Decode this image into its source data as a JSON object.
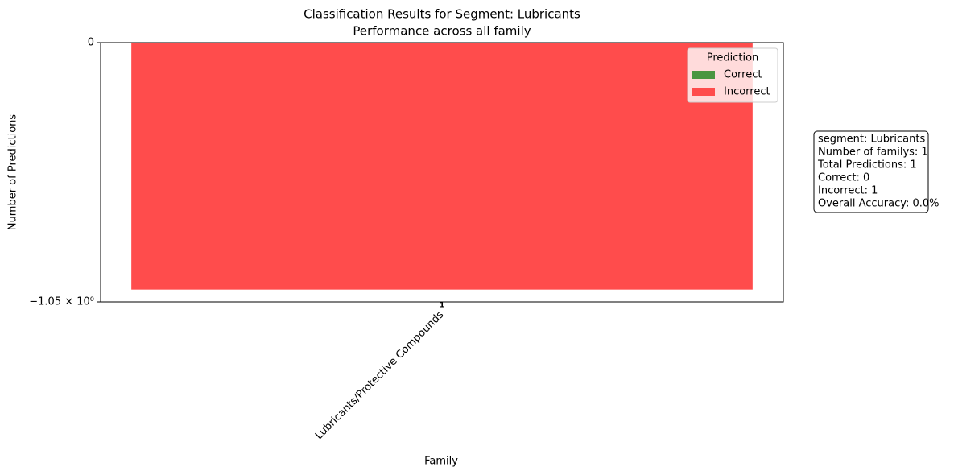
{
  "chart_data": {
    "type": "bar",
    "title": "Classification Results for Segment: Lubricants",
    "subtitle": "Performance across all family",
    "x_label": "Family",
    "y_label": "Number of Predictions",
    "categories": [
      "Lubricants/Protective Compounds"
    ],
    "series": [
      {
        "name": "Correct",
        "color": "#4a9640",
        "values": [
          0
        ]
      },
      {
        "name": "Incorrect",
        "color": "#ff4c4c",
        "values": [
          -1
        ]
      }
    ],
    "stacked": true,
    "bar_labels": [
      "1"
    ],
    "ylim": [
      -1.05,
      0
    ],
    "yticks": [
      0,
      {
        "value": -1.05,
        "label": "−1.05 × 10⁰"
      }
    ],
    "grid": false,
    "legend_title": "Prediction",
    "legend_position": "upper-right",
    "info_box": [
      "segment: Lubricants",
      "Number of familys: 1",
      "Total Predictions: 1",
      "Correct: 0",
      "Incorrect: 1",
      "Overall Accuracy: 0.0%"
    ]
  }
}
